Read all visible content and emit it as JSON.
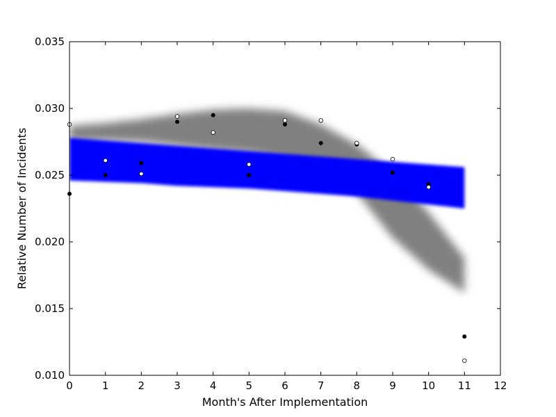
{
  "chart_data": {
    "type": "scatter",
    "title": "",
    "xlabel": "Month's After Implementation",
    "ylabel": "Relative Number of Incidents",
    "xlim": [
      0,
      12
    ],
    "ylim": [
      0.01,
      0.035
    ],
    "xticks": [
      "0",
      "1",
      "2",
      "3",
      "4",
      "5",
      "6",
      "7",
      "8",
      "9",
      "10",
      "11",
      "12"
    ],
    "yticks": [
      "0.010",
      "0.015",
      "0.020",
      "0.025",
      "0.030",
      "0.035"
    ],
    "grid": false,
    "legend": "none",
    "series": [
      {
        "marker": "filled-circle",
        "color": "#000000",
        "x": [
          0,
          1,
          2,
          3,
          4,
          5,
          6,
          7,
          8,
          9,
          10,
          11
        ],
        "y": [
          0.0236,
          0.025,
          0.0259,
          0.029,
          0.0295,
          0.025,
          0.0288,
          0.0274,
          0.0273,
          0.0252,
          0.0243,
          0.0129
        ]
      },
      {
        "marker": "open-circle",
        "color": "#000000",
        "x": [
          0,
          1,
          2,
          3,
          4,
          5,
          6,
          7,
          8,
          9,
          10,
          11
        ],
        "y": [
          0.0288,
          0.0261,
          0.0251,
          0.0294,
          0.0282,
          0.0258,
          0.0291,
          0.0291,
          0.0274,
          0.0262,
          0.0241,
          0.0111
        ]
      }
    ],
    "bands": [
      {
        "color": "#808080",
        "x": [
          0,
          1,
          2,
          3,
          4,
          5,
          6,
          7,
          8,
          9,
          10,
          11
        ],
        "upper": [
          0.0287,
          0.0289,
          0.0292,
          0.0296,
          0.0299,
          0.03,
          0.0298,
          0.0288,
          0.0273,
          0.0252,
          0.0222,
          0.0188
        ],
        "lower": [
          0.0276,
          0.0276,
          0.0275,
          0.0272,
          0.0269,
          0.0267,
          0.0262,
          0.0254,
          0.0237,
          0.0203,
          0.0179,
          0.0162
        ]
      },
      {
        "color": "#0000ff",
        "x": [
          0,
          1,
          2,
          3,
          4,
          5,
          6,
          7,
          8,
          9,
          10,
          11
        ],
        "upper": [
          0.0278,
          0.0276,
          0.0274,
          0.0272,
          0.027,
          0.0268,
          0.0266,
          0.0264,
          0.0262,
          0.026,
          0.0258,
          0.0256
        ],
        "lower": [
          0.0246,
          0.0245,
          0.0244,
          0.0242,
          0.0241,
          0.024,
          0.0238,
          0.0236,
          0.0234,
          0.0231,
          0.0228,
          0.0225
        ]
      }
    ]
  }
}
